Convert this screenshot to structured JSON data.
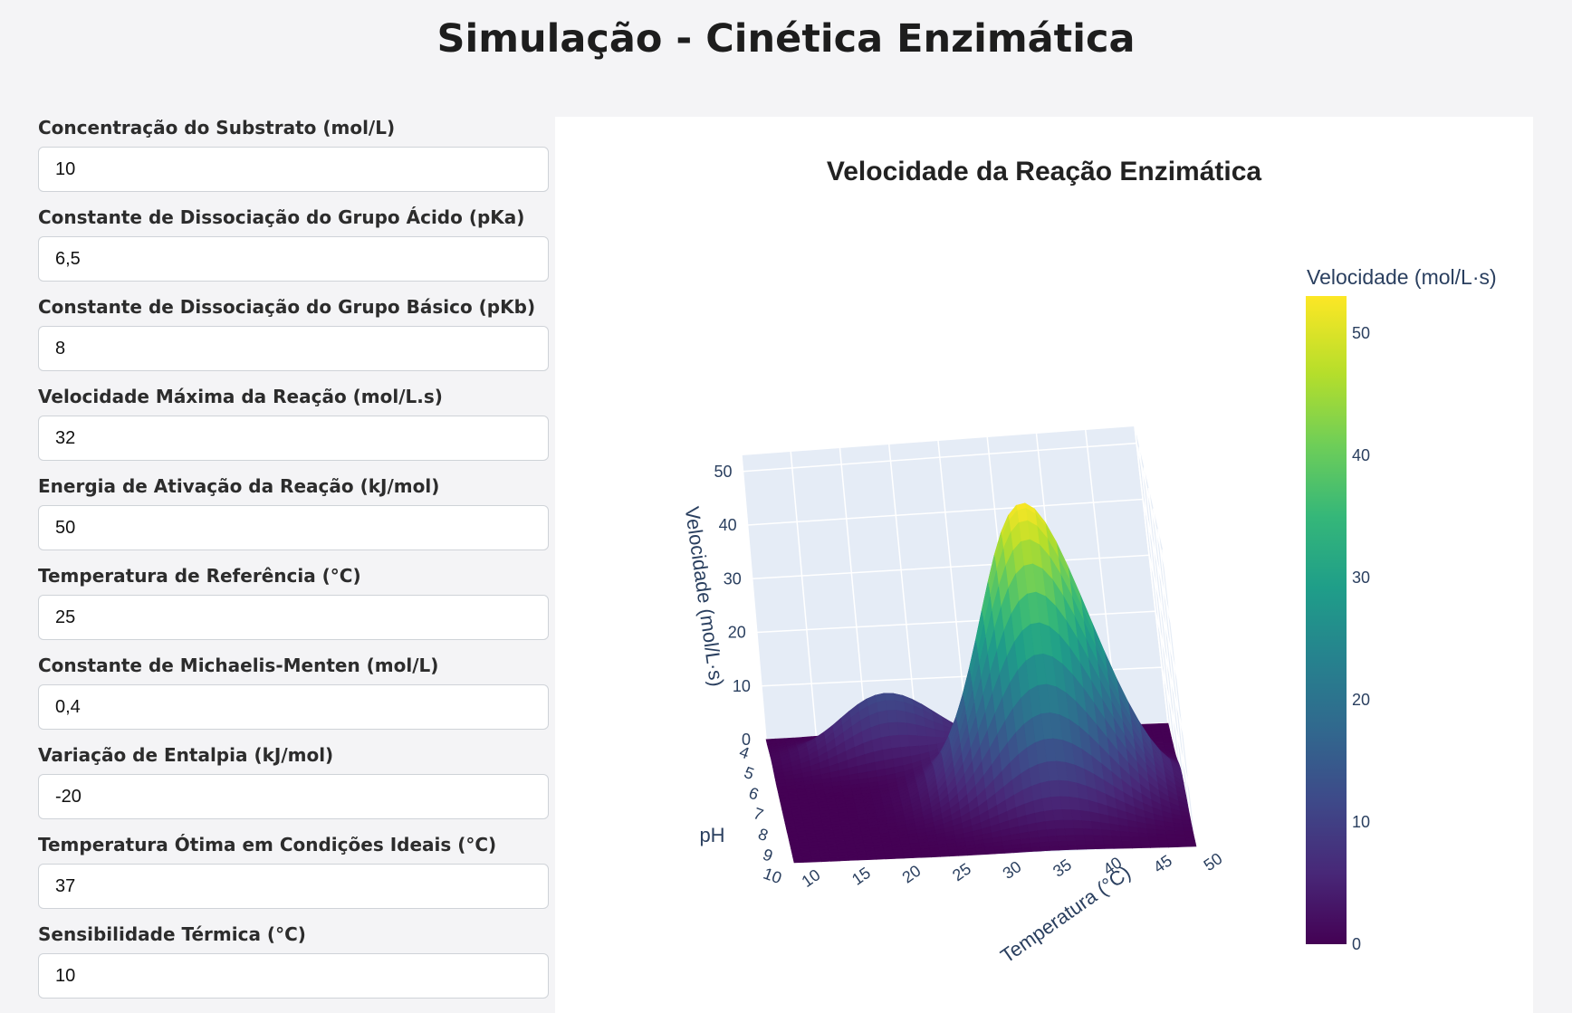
{
  "page": {
    "title": "Simulação - Cinética Enzimática"
  },
  "form": {
    "fields": [
      {
        "label": "Concentração do Substrato (mol/L)",
        "value": "10"
      },
      {
        "label": "Constante de Dissociação do Grupo Ácido (pKa)",
        "value": "6,5"
      },
      {
        "label": "Constante de Dissociação do Grupo Básico (pKb)",
        "value": "8"
      },
      {
        "label": "Velocidade Máxima da Reação (mol/L.s)",
        "value": "32"
      },
      {
        "label": "Energia de Ativação da Reação (kJ/mol)",
        "value": "50"
      },
      {
        "label": "Temperatura de Referência (°C)",
        "value": "25"
      },
      {
        "label": "Constante de Michaelis-Menten (mol/L)",
        "value": "0,4"
      },
      {
        "label": "Variação de Entalpia (kJ/mol)",
        "value": "-20"
      },
      {
        "label": "Temperatura Ótima em Condições Ideais (°C)",
        "value": "37"
      },
      {
        "label": "Sensibilidade Térmica (°C)",
        "value": "10"
      }
    ]
  },
  "chart_data": {
    "type": "surface",
    "title": "Velocidade da Reação Enzimática",
    "x_axis": {
      "label": "pH",
      "ticks": [
        "4",
        "5",
        "6",
        "7",
        "8",
        "9",
        "10"
      ],
      "range": [
        4,
        10
      ]
    },
    "y_axis": {
      "label": "Temperatura (°C)",
      "ticks": [
        "10",
        "15",
        "20",
        "25",
        "30",
        "35",
        "40",
        "45",
        "50"
      ],
      "range": [
        10,
        50
      ]
    },
    "z_axis": {
      "label": "Velocidade (mol/L·s)",
      "ticks": [
        "0",
        "10",
        "20",
        "30",
        "40",
        "50"
      ],
      "range": [
        0,
        53
      ]
    },
    "peak": {
      "ph": 7.3,
      "temperature": 37,
      "velocity": 53
    },
    "colorscale": "viridis",
    "colorbar": {
      "title": "Velocidade (mol/L·s)",
      "ticks": [
        "0",
        "10",
        "20",
        "30",
        "40",
        "50"
      ],
      "range": [
        0,
        53
      ]
    },
    "colors": {
      "low": "#440154",
      "high": "#fde725",
      "scene_bg": "#e5ecf6",
      "grid": "#ffffff"
    }
  }
}
